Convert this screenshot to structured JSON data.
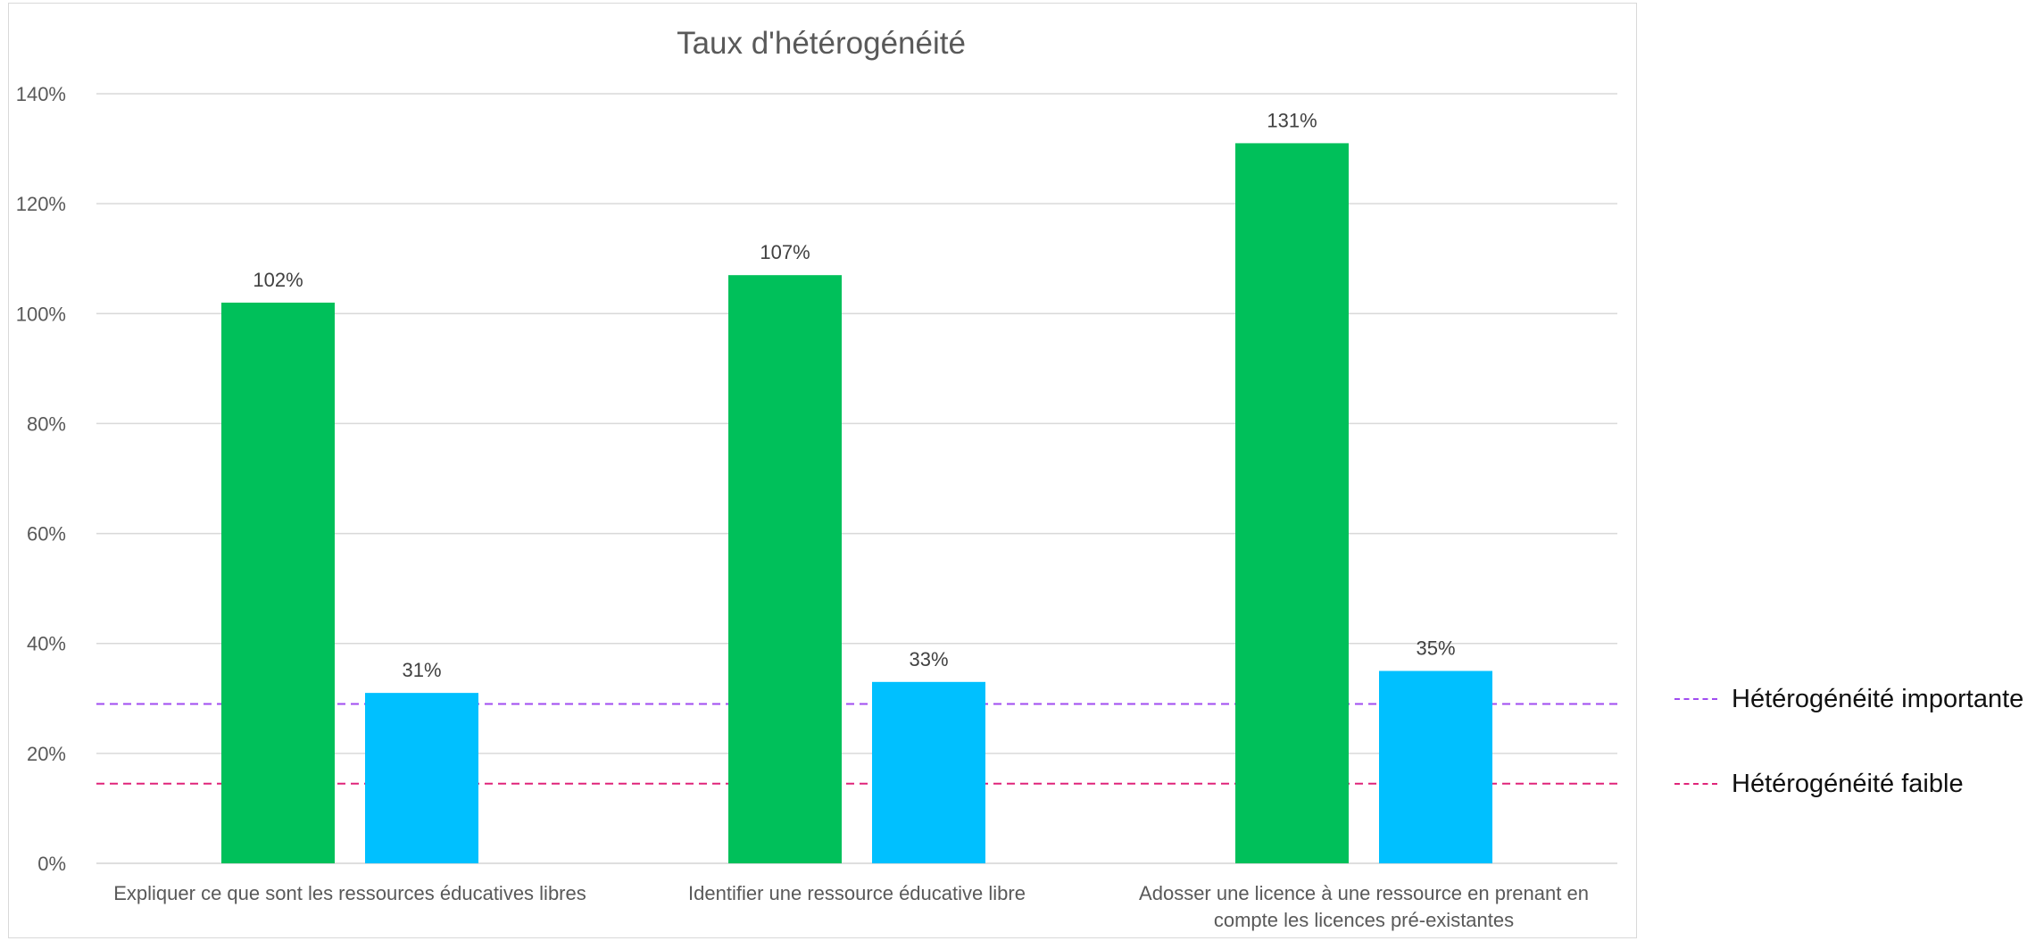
{
  "chart_data": {
    "type": "bar",
    "title": "Taux d'hétérogénéité",
    "categories": [
      [
        "Expliquer ce que sont les ressources éducatives libres"
      ],
      [
        "Identifier une ressource éducative libre"
      ],
      [
        "Adosser une licence à une ressource en prenant en",
        "compte les licences pré-existantes"
      ]
    ],
    "series": [
      {
        "values": [
          102,
          107,
          131
        ],
        "color": "#00c05a"
      },
      {
        "values": [
          31,
          33,
          35
        ],
        "color": "#00c0ff"
      }
    ],
    "data_labels": [
      [
        "102%",
        "107%",
        "131%"
      ],
      [
        "31%",
        "33%",
        "35%"
      ]
    ],
    "y_ticks": [
      0,
      20,
      40,
      60,
      80,
      100,
      120,
      140
    ],
    "y_tick_labels": [
      "0%",
      "20%",
      "40%",
      "60%",
      "80%",
      "100%",
      "120%",
      "140%"
    ],
    "ylim": [
      0,
      140
    ],
    "grid": true,
    "reference_lines": [
      {
        "name": "Hétérogénéité importante",
        "value": 29,
        "color": "#a04cf0"
      },
      {
        "name": "Hétérogénéité faible",
        "value": 14.5,
        "color": "#e0257a"
      }
    ],
    "legend_position": "right"
  }
}
